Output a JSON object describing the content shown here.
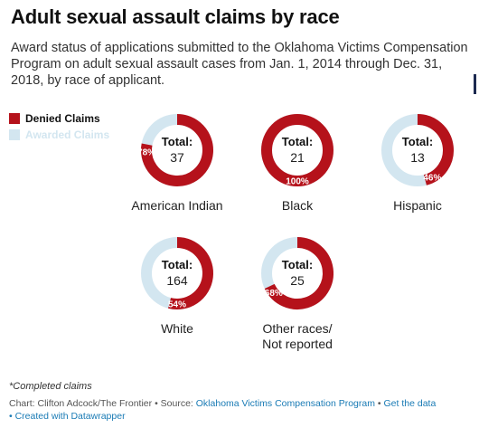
{
  "header": {
    "title": "Adult sexual assault claims by race",
    "subtitle": "Award status of applications submitted to the Oklahoma Victims Compensation Program on adult sexual assault cases from Jan. 1, 2014 through Dec. 31, 2018, by race of applicant."
  },
  "legend": {
    "denied": "Denied Claims",
    "awarded": "Awarded Claims"
  },
  "colors": {
    "denied": "#b5121b",
    "awarded": "#d3e6f0"
  },
  "chart_data": {
    "type": "pie",
    "variant": "donut",
    "center_label": "Total:",
    "series_names": [
      "Denied Claims",
      "Awarded Claims"
    ],
    "charts": [
      {
        "category": "American Indian",
        "total": 37,
        "denied_pct": 78,
        "awarded_pct": 22,
        "shown_label": "78%"
      },
      {
        "category": "Black",
        "total": 21,
        "denied_pct": 100,
        "awarded_pct": 0,
        "shown_label": "100%"
      },
      {
        "category": "Hispanic",
        "total": 13,
        "denied_pct": 46,
        "awarded_pct": 54,
        "shown_label": "46%"
      },
      {
        "category": "White",
        "total": 164,
        "denied_pct": 54,
        "awarded_pct": 46,
        "shown_label": "54%"
      },
      {
        "category": "Other races/Not reported",
        "total": 25,
        "denied_pct": 68,
        "awarded_pct": 32,
        "shown_label": "68%"
      }
    ]
  },
  "footer": {
    "note": "*Completed claims",
    "source_prefix": "Chart: Clifton Adcock/The Frontier • Source: ",
    "source_link": "Oklahoma Victims Compensation Program",
    "separator": " • ",
    "get_data": "Get the data",
    "created_with": "• Created with Datawrapper"
  }
}
